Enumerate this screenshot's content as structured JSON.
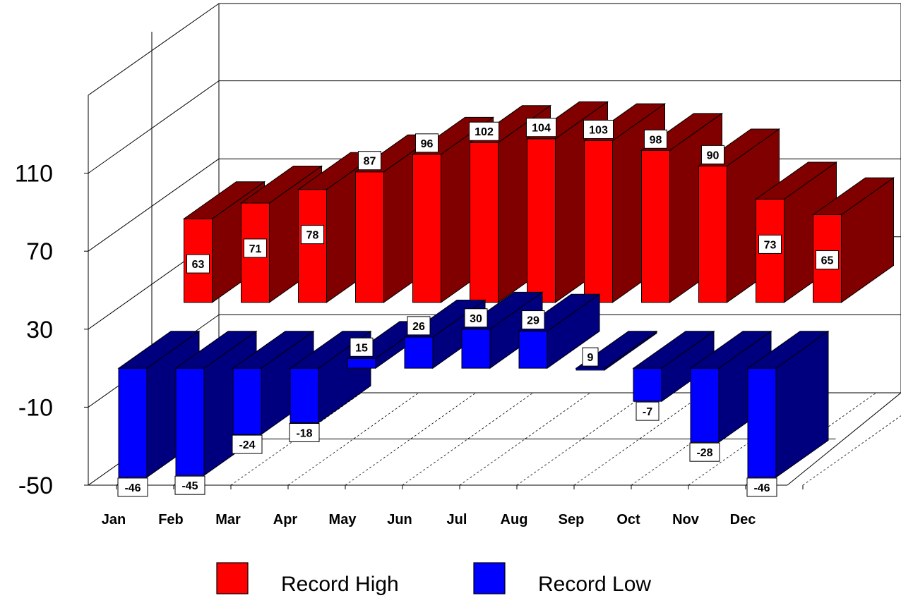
{
  "chart_data": {
    "type": "bar",
    "categories": [
      "Jan",
      "Feb",
      "Mar",
      "Apr",
      "May",
      "Jun",
      "Jul",
      "Aug",
      "Sep",
      "Oct",
      "Nov",
      "Dec"
    ],
    "series": [
      {
        "name": "Record High",
        "color": "#ff0000",
        "side_color": "#800000",
        "values": [
          63,
          71,
          78,
          87,
          96,
          102,
          104,
          103,
          98,
          90,
          73,
          65
        ],
        "labels": [
          "63",
          "71",
          "78",
          "87",
          "96",
          "102",
          "104",
          "103",
          "98",
          "90",
          "73",
          "65"
        ]
      },
      {
        "name": "Record Low",
        "color": "#0000ff",
        "side_color": "#00007f",
        "values": [
          -46,
          -45,
          -24,
          -18,
          15,
          26,
          30,
          29,
          9,
          -7,
          -28,
          -46
        ],
        "labels": [
          "-46",
          "-45",
          "-24",
          "-18",
          "15",
          "26",
          "30",
          "29",
          "9",
          "-7",
          "-28",
          "-46"
        ]
      }
    ],
    "yticks": [
      "-50",
      "-10",
      "30",
      "70",
      "110"
    ],
    "ylim": [
      -50,
      150
    ],
    "projection": "3d",
    "grid": true,
    "legend": "bottom"
  }
}
